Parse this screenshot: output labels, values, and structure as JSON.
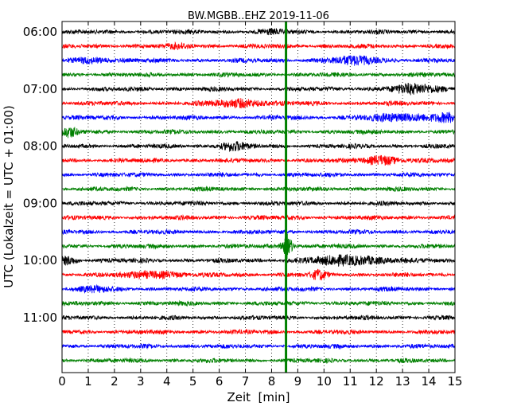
{
  "chart_data": {
    "type": "line",
    "title": "BW.MGBB..EHZ 2019-11-06",
    "xlabel": "Zeit  [min]",
    "ylabel": "UTC (Lokalzeit = UTC + 01:00)",
    "xlim": [
      0,
      15
    ],
    "x_ticks": [
      "0",
      "1",
      "2",
      "3",
      "4",
      "5",
      "6",
      "7",
      "8",
      "9",
      "10",
      "11",
      "12",
      "13",
      "14",
      "15"
    ],
    "y_tick_labels": [
      "06:00",
      "07:00",
      "08:00",
      "09:00",
      "10:00",
      "11:00"
    ],
    "traces_per_hour": 4,
    "trace_start_times": [
      "06:00",
      "06:15",
      "06:30",
      "06:45",
      "07:00",
      "07:15",
      "07:30",
      "07:45",
      "08:00",
      "08:15",
      "08:30",
      "08:45",
      "09:00",
      "09:15",
      "09:30",
      "09:45",
      "10:00",
      "10:15",
      "10:30",
      "10:45",
      "11:00",
      "11:15",
      "11:30",
      "11:45"
    ],
    "series_colors": [
      "#000000",
      "#ff0000",
      "#0000ff",
      "#008000"
    ],
    "grid": "vertical dotted at each minute",
    "event_marker": {
      "x_min": 8.55,
      "color": "#008000"
    },
    "seismic_event": {
      "trace_start_time": "09:45",
      "x_min": 8.55
    }
  }
}
